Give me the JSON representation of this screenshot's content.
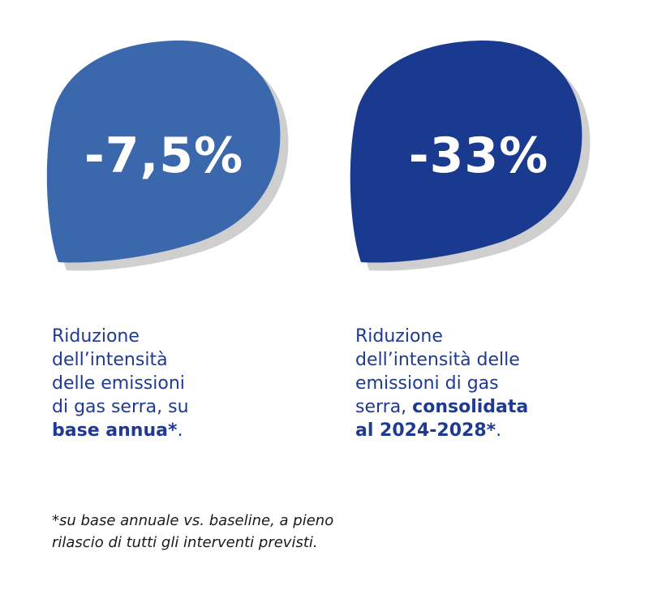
{
  "colors": {
    "left_blob": "#3b67ad",
    "right_blob": "#1a3a8f",
    "text_blue": "#1f3a93",
    "shadow": "#cfcfcf",
    "footnote": "#1a1a1a"
  },
  "left": {
    "value": "-7,5%",
    "desc_line1": "Riduzione",
    "desc_line2": "dell’intensità",
    "desc_line3": "delle emissioni",
    "desc_line4": "di gas serra, su",
    "desc_bold": "base annua*",
    "desc_end": "."
  },
  "right": {
    "value": "-33%",
    "desc_line1": "Riduzione",
    "desc_line2": "dell’intensità delle",
    "desc_line3": "emissioni di gas",
    "desc_line4_plain": "serra, ",
    "desc_line4_bold": "consolidata",
    "desc_line5_bold": "al 2024-2028*",
    "desc_end": "."
  },
  "footnote": {
    "line1": "*su base annuale vs. baseline, a pieno",
    "line2": "rilascio di tutti gli interventi previsti."
  }
}
